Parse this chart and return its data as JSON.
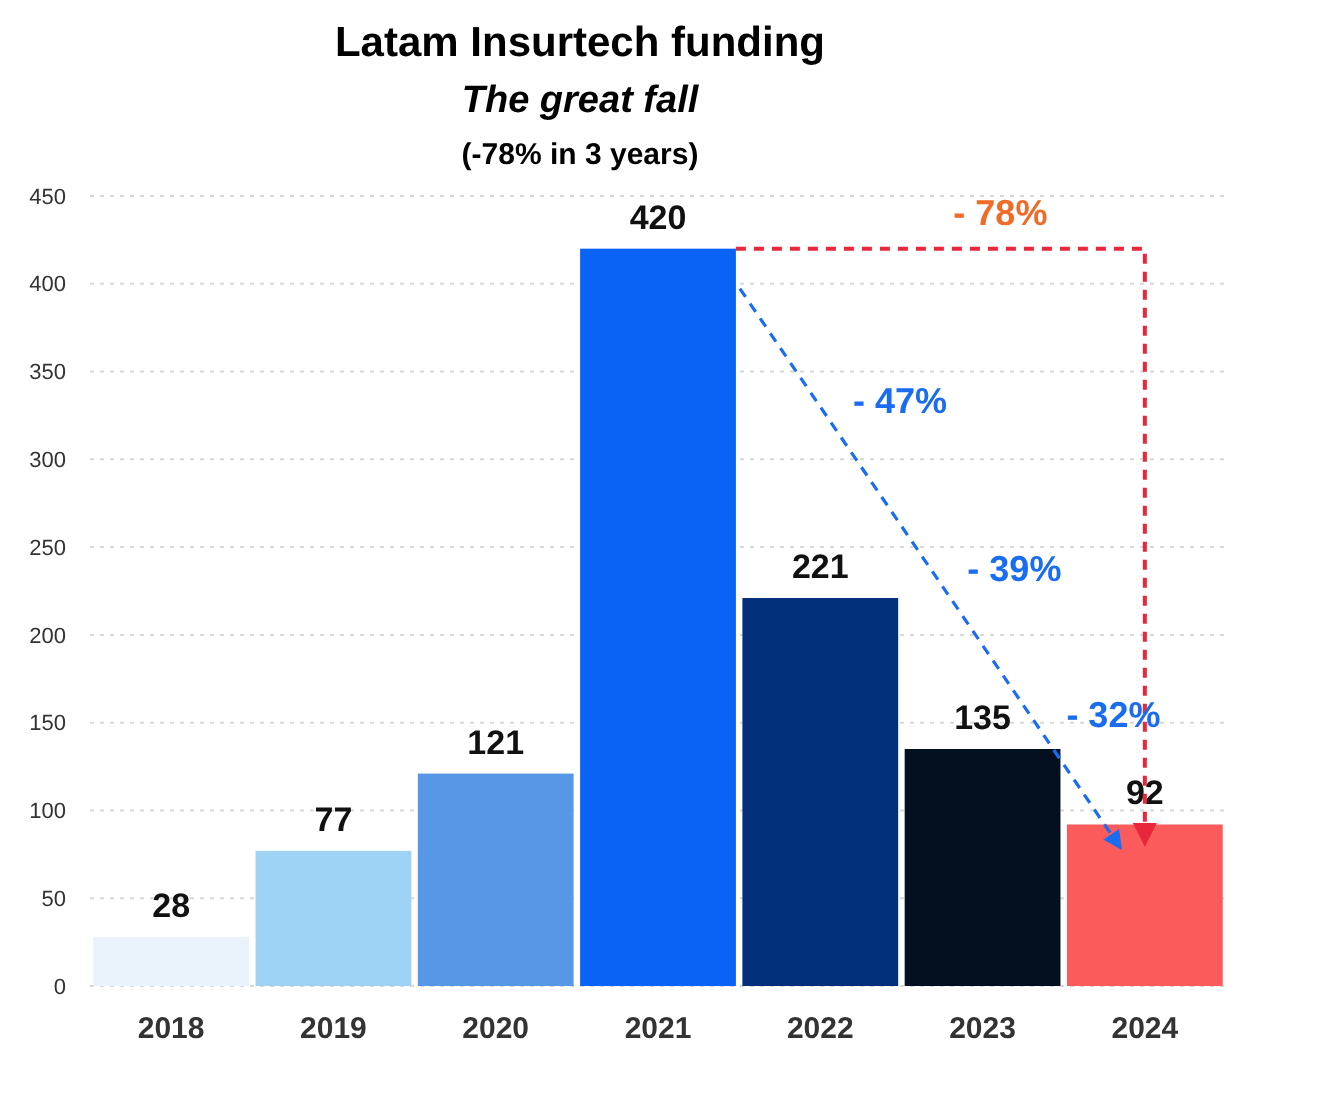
{
  "chart_data": {
    "type": "bar",
    "title": "Latam Insurtech funding",
    "subtitle": "The great fall",
    "categories": [
      "2018",
      "2019",
      "2020",
      "2021",
      "2022",
      "2023",
      "2024"
    ],
    "values": [
      28,
      77,
      121,
      420,
      221,
      135,
      92
    ],
    "colors": [
      "#eaf3fb",
      "#9fd3f5",
      "#5697e6",
      "#0a63f5",
      "#02307a",
      "#04101f",
      "#fb5b5b"
    ],
    "ylim": [
      0,
      450
    ],
    "yticks": [
      0,
      50,
      100,
      150,
      200,
      250,
      300,
      350,
      400,
      450
    ],
    "grid": "y",
    "data_labels": true,
    "annotations": [
      "(-78% in 3 years)",
      "- 78%",
      "- 47%",
      "- 39%",
      "- 32%"
    ]
  }
}
